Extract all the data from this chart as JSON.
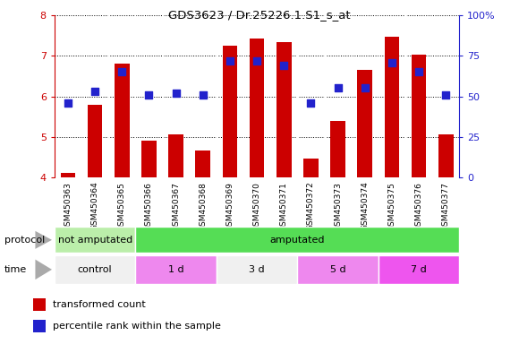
{
  "title": "GDS3623 / Dr.25226.1.S1_s_at",
  "samples": [
    "GSM450363",
    "GSM450364",
    "GSM450365",
    "GSM450366",
    "GSM450367",
    "GSM450368",
    "GSM450369",
    "GSM450370",
    "GSM450371",
    "GSM450372",
    "GSM450373",
    "GSM450374",
    "GSM450375",
    "GSM450376",
    "GSM450377"
  ],
  "transformed_count": [
    4.1,
    5.78,
    6.8,
    4.9,
    5.05,
    4.67,
    7.25,
    7.42,
    7.35,
    4.47,
    5.4,
    6.65,
    7.48,
    7.02,
    5.05
  ],
  "percentile_rank": [
    46,
    53,
    65,
    51,
    52,
    51,
    72,
    72,
    69,
    46,
    55,
    55,
    71,
    65,
    51
  ],
  "ylim_left": [
    4,
    8
  ],
  "ylim_right": [
    0,
    100
  ],
  "yticks_left": [
    4,
    5,
    6,
    7,
    8
  ],
  "yticks_right": [
    0,
    25,
    50,
    75,
    100
  ],
  "bar_color": "#cc0000",
  "dot_color": "#2222cc",
  "bar_width": 0.55,
  "dot_size": 30,
  "protocol_groups": [
    {
      "label": "not amputated",
      "start": 0,
      "end": 3,
      "color": "#bbeeaa"
    },
    {
      "label": "amputated",
      "start": 3,
      "end": 15,
      "color": "#55dd55"
    }
  ],
  "time_groups": [
    {
      "label": "control",
      "start": 0,
      "end": 3,
      "color": "#f0f0f0"
    },
    {
      "label": "1 d",
      "start": 3,
      "end": 6,
      "color": "#ee88ee"
    },
    {
      "label": "3 d",
      "start": 6,
      "end": 9,
      "color": "#f0f0f0"
    },
    {
      "label": "5 d",
      "start": 9,
      "end": 12,
      "color": "#ee88ee"
    },
    {
      "label": "7 d",
      "start": 12,
      "end": 15,
      "color": "#ee55ee"
    }
  ],
  "legend_labels": [
    "transformed count",
    "percentile rank within the sample"
  ],
  "legend_colors": [
    "#cc0000",
    "#2222cc"
  ],
  "bg_color": "#ffffff",
  "left_axis_color": "#cc0000",
  "right_axis_color": "#2222cc",
  "plot_bg_color": "#ffffff",
  "tick_area_color": "#cccccc"
}
